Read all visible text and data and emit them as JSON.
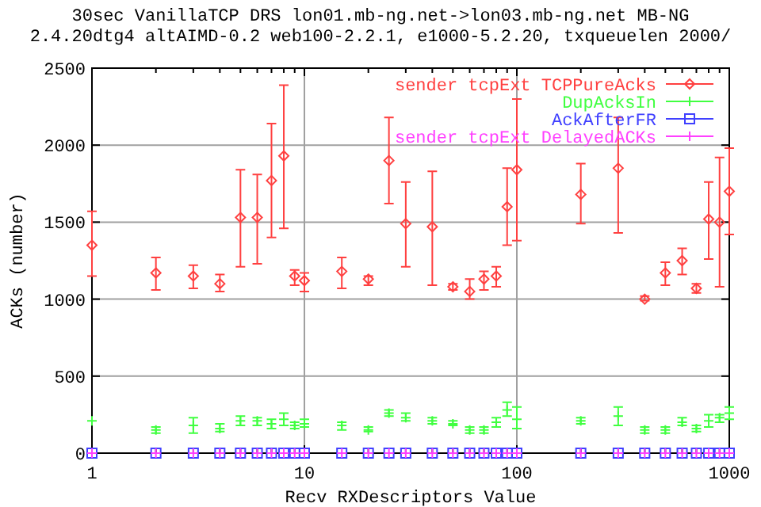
{
  "chart_data": {
    "type": "scatter",
    "title": "30sec VanillaTCP DRS lon01.mb-ng.net->lon03.mb-ng.net MB-NG",
    "subtitle": "2.4.20dtg4 altAIMD-0.2 web100-2.2.1, e1000-5.2.20, txqueuelen 2000/",
    "xlabel": "Recv RXDescriptors Value",
    "ylabel": "ACKs (number)",
    "x": [
      1,
      2,
      3,
      4,
      5,
      6,
      7,
      8,
      9,
      10,
      15,
      20,
      25,
      30,
      40,
      50,
      60,
      70,
      80,
      90,
      100,
      200,
      300,
      400,
      500,
      600,
      700,
      800,
      900,
      1000
    ],
    "log": "x",
    "xlim": [
      1,
      1000
    ],
    "ylim": [
      0,
      2500
    ],
    "xticks": [
      1,
      {
        "value": 2,
        "label": null
      },
      {
        "value": 3,
        "label": null
      },
      {
        "value": 4,
        "label": null
      },
      {
        "value": 5,
        "label": null
      },
      {
        "value": 6,
        "label": null
      },
      {
        "value": 7,
        "label": null
      },
      {
        "value": 8,
        "label": null
      },
      {
        "value": 9,
        "label": null
      },
      10,
      {
        "value": 20,
        "label": null
      },
      {
        "value": 30,
        "label": null
      },
      {
        "value": 40,
        "label": null
      },
      {
        "value": 50,
        "label": null
      },
      {
        "value": 60,
        "label": null
      },
      {
        "value": 70,
        "label": null
      },
      {
        "value": 80,
        "label": null
      },
      {
        "value": 90,
        "label": null
      },
      100,
      {
        "value": 200,
        "label": null
      },
      {
        "value": 300,
        "label": null
      },
      {
        "value": 400,
        "label": null
      },
      {
        "value": 500,
        "label": null
      },
      {
        "value": 600,
        "label": null
      },
      {
        "value": 700,
        "label": null
      },
      {
        "value": 800,
        "label": null
      },
      {
        "value": 900,
        "label": null
      },
      1000
    ],
    "yticks": [
      0,
      500,
      1000,
      1500,
      2000,
      2500
    ],
    "grid": true,
    "legend": "top right",
    "series": [
      {
        "name": "sender tcpExt TCPPureAcks",
        "color": "#ff4040",
        "marker": "diamond",
        "values": [
          1350,
          1170,
          1150,
          1100,
          1530,
          1530,
          1770,
          1930,
          1150,
          1120,
          1180,
          1130,
          1900,
          1490,
          1470,
          1080,
          1050,
          1130,
          1150,
          1600,
          1840,
          1680,
          1850,
          1000,
          1170,
          1250,
          1070,
          1520,
          1500,
          1700
        ],
        "errors": [
          [
            1150,
            1570
          ],
          [
            1060,
            1270
          ],
          [
            1070,
            1220
          ],
          [
            1050,
            1160
          ],
          [
            1210,
            1840
          ],
          [
            1230,
            1810
          ],
          [
            1400,
            2140
          ],
          [
            1460,
            2390
          ],
          [
            1090,
            1190
          ],
          [
            1050,
            1170
          ],
          [
            1070,
            1270
          ],
          [
            1090,
            1150
          ],
          [
            1620,
            2180
          ],
          [
            1210,
            1760
          ],
          [
            1090,
            1830
          ],
          [
            1060,
            1100
          ],
          [
            1000,
            1130
          ],
          [
            1060,
            1180
          ],
          [
            1080,
            1210
          ],
          [
            1350,
            1850
          ],
          [
            1380,
            2300
          ],
          [
            1490,
            1880
          ],
          [
            1430,
            2180
          ],
          [
            990,
            1020
          ],
          [
            1090,
            1240
          ],
          [
            1160,
            1330
          ],
          [
            1040,
            1100
          ],
          [
            1260,
            1760
          ],
          [
            1080,
            1920
          ],
          [
            1420,
            1980
          ]
        ]
      },
      {
        "name": "DupAcksIn",
        "color": "#40ff40",
        "marker": "cross",
        "values": [
          210,
          150,
          180,
          160,
          210,
          210,
          190,
          220,
          180,
          190,
          180,
          150,
          260,
          230,
          210,
          190,
          150,
          150,
          200,
          280,
          220,
          210,
          240,
          150,
          150,
          200,
          160,
          210,
          230,
          260
        ],
        "errors": [
          null,
          [
            130,
            170
          ],
          [
            130,
            230
          ],
          [
            140,
            190
          ],
          [
            180,
            240
          ],
          [
            180,
            230
          ],
          [
            160,
            220
          ],
          [
            180,
            260
          ],
          [
            160,
            200
          ],
          [
            170,
            220
          ],
          [
            150,
            200
          ],
          [
            140,
            170
          ],
          [
            240,
            280
          ],
          [
            210,
            260
          ],
          [
            190,
            230
          ],
          [
            180,
            210
          ],
          [
            130,
            170
          ],
          [
            130,
            170
          ],
          [
            170,
            230
          ],
          [
            240,
            330
          ],
          [
            160,
            300
          ],
          [
            190,
            230
          ],
          [
            180,
            300
          ],
          [
            130,
            170
          ],
          [
            130,
            170
          ],
          [
            180,
            230
          ],
          [
            140,
            180
          ],
          [
            170,
            250
          ],
          [
            200,
            250
          ],
          [
            220,
            300
          ]
        ]
      },
      {
        "name": "AckAfterFR",
        "color": "#4040ff",
        "marker": "square",
        "values": [
          0,
          0,
          0,
          0,
          0,
          0,
          0,
          0,
          0,
          0,
          0,
          0,
          0,
          0,
          0,
          0,
          0,
          0,
          0,
          0,
          0,
          0,
          0,
          0,
          0,
          0,
          0,
          0,
          0,
          0
        ]
      },
      {
        "name": "sender tcpExt DelayedACKs",
        "color": "#ff40ff",
        "marker": "cross",
        "values": [
          0,
          0,
          0,
          0,
          0,
          0,
          0,
          0,
          0,
          0,
          0,
          0,
          0,
          0,
          0,
          0,
          0,
          0,
          0,
          0,
          0,
          0,
          0,
          0,
          0,
          0,
          0,
          0,
          0,
          0
        ]
      }
    ]
  }
}
